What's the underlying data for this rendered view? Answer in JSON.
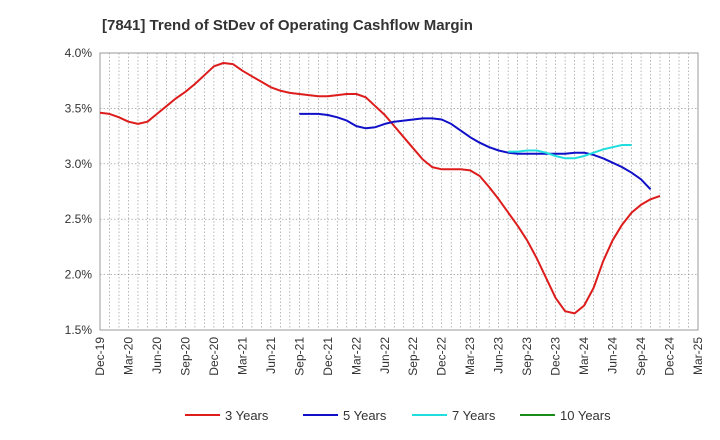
{
  "chart_data": {
    "type": "line",
    "title": "[7841]  Trend of StDev of Operating Cashflow Margin",
    "xlabel": "",
    "ylabel": "",
    "ylim": [
      1.5,
      4.0
    ],
    "y_ticks": [
      "1.5%",
      "2.0%",
      "2.5%",
      "3.0%",
      "3.5%",
      "4.0%"
    ],
    "y_tick_values": [
      1.5,
      2.0,
      2.5,
      3.0,
      3.5,
      4.0
    ],
    "x_ticks": [
      "Dec-19",
      "Mar-20",
      "Jun-20",
      "Sep-20",
      "Dec-20",
      "Mar-21",
      "Jun-21",
      "Sep-21",
      "Dec-21",
      "Mar-22",
      "Jun-22",
      "Sep-22",
      "Dec-22",
      "Mar-23",
      "Jun-23",
      "Sep-23",
      "Dec-23",
      "Mar-24",
      "Jun-24",
      "Sep-24",
      "Dec-24",
      "Mar-25"
    ],
    "grid": true,
    "legend_position": "bottom",
    "series": [
      {
        "name": "3 Years",
        "color": "#dd1c1c",
        "start_index": 0,
        "values": [
          3.46,
          3.45,
          3.42,
          3.38,
          3.36,
          3.38,
          3.45,
          3.52,
          3.59,
          3.65,
          3.72,
          3.8,
          3.88,
          3.91,
          3.9,
          3.84,
          3.79,
          3.74,
          3.69,
          3.66,
          3.64,
          3.63,
          3.62,
          3.61,
          3.61,
          3.62,
          3.63,
          3.63,
          3.6,
          3.52,
          3.44,
          3.34,
          3.24,
          3.14,
          3.04,
          2.97,
          2.95,
          2.95,
          2.95,
          2.94,
          2.89,
          2.79,
          2.68,
          2.56,
          2.44,
          2.31,
          2.15,
          1.97,
          1.79,
          1.67,
          1.65,
          1.72,
          1.88,
          2.12,
          2.31,
          2.45,
          2.56,
          2.63,
          2.68,
          2.71
        ]
      },
      {
        "name": "5 Years",
        "color": "#1010c8",
        "start_index": 21,
        "values": [
          3.45,
          3.45,
          3.45,
          3.44,
          3.42,
          3.39,
          3.34,
          3.32,
          3.33,
          3.36,
          3.38,
          3.39,
          3.4,
          3.41,
          3.41,
          3.4,
          3.36,
          3.3,
          3.24,
          3.19,
          3.15,
          3.12,
          3.1,
          3.09,
          3.09,
          3.09,
          3.09,
          3.09,
          3.09,
          3.1,
          3.1,
          3.08,
          3.05,
          3.01,
          2.97,
          2.92,
          2.86,
          2.77
        ]
      },
      {
        "name": "7 Years",
        "color": "#22dddd",
        "start_index": 43,
        "values": [
          3.11,
          3.11,
          3.12,
          3.12,
          3.1,
          3.07,
          3.05,
          3.05,
          3.07,
          3.1,
          3.13,
          3.15,
          3.17,
          3.17
        ]
      },
      {
        "name": "10 Years",
        "color": "#1a8c1a",
        "start_index": 0,
        "values": []
      }
    ]
  }
}
